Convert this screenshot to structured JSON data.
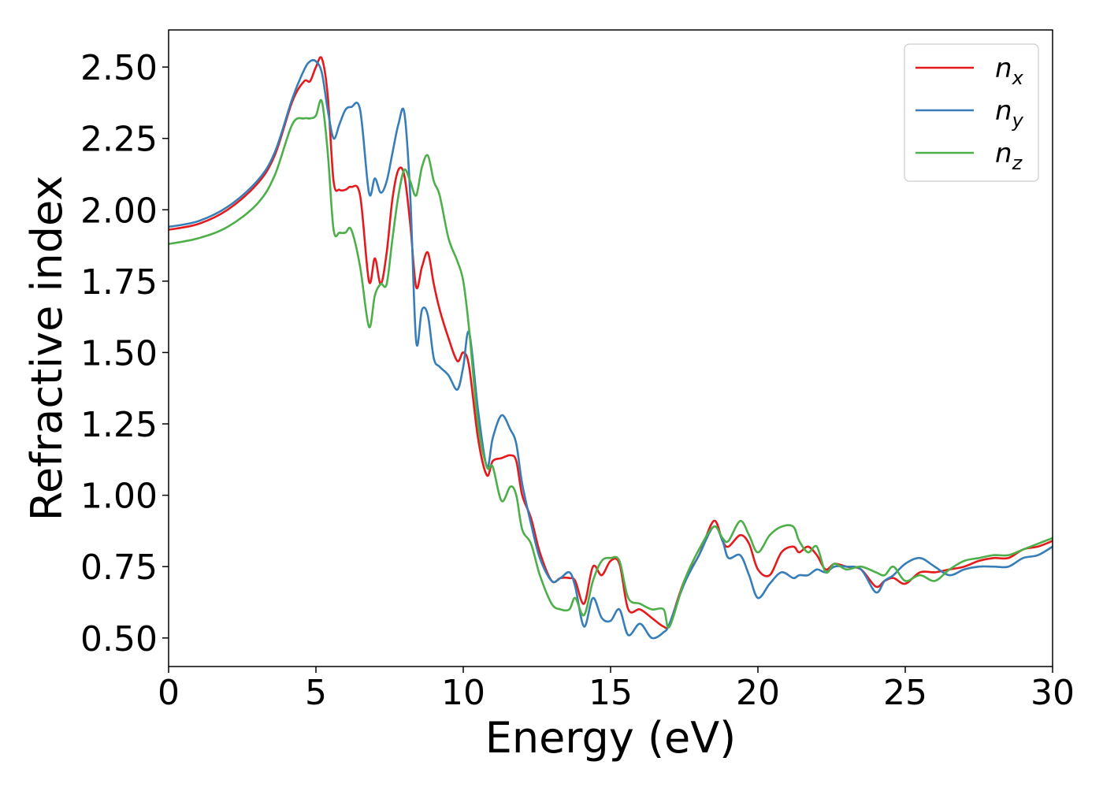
{
  "chart_data": {
    "type": "line",
    "title": "",
    "xlabel": "Energy (eV)",
    "ylabel": "Refractive index",
    "xlim": [
      0,
      30
    ],
    "ylim": [
      0.4,
      2.63
    ],
    "xticks": [
      0,
      5,
      10,
      15,
      20,
      25,
      30
    ],
    "xtick_labels": [
      "0",
      "5",
      "10",
      "15",
      "20",
      "25",
      "30"
    ],
    "yticks": [
      0.5,
      0.75,
      1.0,
      1.25,
      1.5,
      1.75,
      2.0,
      2.25,
      2.5
    ],
    "ytick_labels": [
      "0.50",
      "0.75",
      "1.00",
      "1.25",
      "1.50",
      "1.75",
      "2.00",
      "2.25",
      "2.50"
    ],
    "grid": false,
    "legend_position": "top-right",
    "series": [
      {
        "name": "n_x",
        "legend_base": "n",
        "legend_sub": "x",
        "color": "#e41a1c",
        "x": [
          0,
          1,
          2,
          3,
          3.6,
          4.2,
          4.6,
          4.8,
          5.0,
          5.2,
          5.4,
          5.6,
          5.8,
          6.0,
          6.2,
          6.5,
          6.8,
          7.0,
          7.2,
          7.4,
          7.6,
          7.8,
          8.0,
          8.2,
          8.4,
          8.6,
          8.8,
          9.0,
          9.2,
          9.5,
          9.8,
          10.0,
          10.2,
          10.5,
          10.8,
          11.0,
          11.3,
          11.6,
          11.8,
          12.0,
          12.3,
          12.6,
          13.0,
          13.3,
          13.6,
          13.8,
          14.1,
          14.4,
          14.7,
          15.0,
          15.3,
          15.6,
          16.0,
          16.4,
          16.8,
          17.0,
          17.5,
          18.0,
          18.5,
          18.8,
          19.0,
          19.4,
          19.7,
          20.0,
          20.4,
          20.8,
          21.2,
          21.4,
          21.7,
          22.0,
          22.3,
          22.6,
          23.0,
          23.5,
          24.0,
          24.3,
          24.6,
          25.0,
          25.5,
          26.0,
          26.5,
          27.0,
          27.5,
          28.0,
          28.5,
          29.0,
          29.5,
          30.0
        ],
        "y": [
          1.93,
          1.95,
          2.0,
          2.09,
          2.19,
          2.38,
          2.45,
          2.45,
          2.5,
          2.53,
          2.4,
          2.1,
          2.07,
          2.07,
          2.08,
          2.05,
          1.75,
          1.83,
          1.74,
          1.85,
          2.04,
          2.14,
          2.12,
          1.95,
          1.73,
          1.8,
          1.85,
          1.74,
          1.65,
          1.55,
          1.47,
          1.5,
          1.45,
          1.2,
          1.07,
          1.12,
          1.13,
          1.14,
          1.12,
          1.0,
          0.92,
          0.8,
          0.7,
          0.71,
          0.71,
          0.7,
          0.62,
          0.75,
          0.72,
          0.77,
          0.76,
          0.6,
          0.6,
          0.57,
          0.54,
          0.55,
          0.7,
          0.79,
          0.91,
          0.84,
          0.82,
          0.86,
          0.83,
          0.74,
          0.72,
          0.8,
          0.82,
          0.8,
          0.82,
          0.79,
          0.74,
          0.76,
          0.75,
          0.74,
          0.68,
          0.7,
          0.71,
          0.69,
          0.73,
          0.73,
          0.74,
          0.75,
          0.77,
          0.78,
          0.78,
          0.81,
          0.82,
          0.84
        ]
      },
      {
        "name": "n_y",
        "legend_base": "n",
        "legend_sub": "y",
        "color": "#377eb8",
        "x": [
          0,
          1,
          2,
          3,
          3.6,
          4.2,
          4.6,
          4.8,
          5.0,
          5.2,
          5.4,
          5.6,
          5.8,
          6.0,
          6.2,
          6.5,
          6.8,
          7.0,
          7.2,
          7.4,
          7.6,
          7.8,
          8.0,
          8.2,
          8.4,
          8.6,
          8.8,
          9.0,
          9.2,
          9.5,
          9.8,
          10.0,
          10.2,
          10.5,
          10.8,
          11.0,
          11.3,
          11.6,
          11.8,
          12.0,
          12.3,
          12.6,
          13.0,
          13.3,
          13.6,
          13.8,
          14.1,
          14.4,
          14.7,
          15.0,
          15.3,
          15.6,
          16.0,
          16.4,
          16.8,
          17.0,
          17.5,
          18.0,
          18.5,
          18.8,
          19.0,
          19.4,
          19.7,
          20.0,
          20.4,
          20.8,
          21.2,
          21.4,
          21.7,
          22.0,
          22.3,
          22.6,
          23.0,
          23.5,
          24.0,
          24.3,
          24.6,
          25.0,
          25.5,
          26.0,
          26.5,
          27.0,
          27.5,
          28.0,
          28.5,
          29.0,
          29.5,
          30.0
        ],
        "y": [
          1.94,
          1.96,
          2.01,
          2.1,
          2.2,
          2.39,
          2.49,
          2.52,
          2.52,
          2.48,
          2.35,
          2.25,
          2.3,
          2.35,
          2.36,
          2.35,
          2.06,
          2.11,
          2.06,
          2.1,
          2.2,
          2.3,
          2.34,
          2.05,
          1.54,
          1.65,
          1.63,
          1.48,
          1.45,
          1.42,
          1.37,
          1.45,
          1.57,
          1.3,
          1.1,
          1.2,
          1.28,
          1.23,
          1.18,
          1.04,
          0.9,
          0.78,
          0.7,
          0.71,
          0.73,
          0.68,
          0.54,
          0.64,
          0.57,
          0.56,
          0.6,
          0.51,
          0.55,
          0.5,
          0.52,
          0.55,
          0.69,
          0.79,
          0.89,
          0.84,
          0.78,
          0.79,
          0.72,
          0.64,
          0.69,
          0.73,
          0.71,
          0.72,
          0.72,
          0.74,
          0.73,
          0.75,
          0.75,
          0.74,
          0.66,
          0.7,
          0.72,
          0.76,
          0.78,
          0.75,
          0.72,
          0.74,
          0.75,
          0.75,
          0.75,
          0.78,
          0.79,
          0.82
        ]
      },
      {
        "name": "n_z",
        "legend_base": "n",
        "legend_sub": "z",
        "color": "#4daf4a",
        "x": [
          0,
          1,
          2,
          3,
          3.6,
          4.2,
          4.6,
          4.8,
          5.0,
          5.2,
          5.4,
          5.6,
          5.8,
          6.0,
          6.2,
          6.5,
          6.8,
          7.0,
          7.2,
          7.4,
          7.6,
          7.8,
          8.0,
          8.2,
          8.4,
          8.6,
          8.8,
          9.0,
          9.2,
          9.5,
          9.8,
          10.0,
          10.2,
          10.5,
          10.8,
          11.0,
          11.3,
          11.6,
          11.8,
          12.0,
          12.3,
          12.6,
          13.0,
          13.3,
          13.6,
          13.8,
          14.1,
          14.4,
          14.7,
          15.0,
          15.3,
          15.6,
          16.0,
          16.4,
          16.8,
          17.0,
          17.5,
          18.0,
          18.5,
          18.8,
          19.0,
          19.4,
          19.7,
          20.0,
          20.4,
          20.8,
          21.2,
          21.4,
          21.7,
          22.0,
          22.3,
          22.6,
          23.0,
          23.5,
          24.0,
          24.3,
          24.6,
          25.0,
          25.5,
          26.0,
          26.5,
          27.0,
          27.5,
          28.0,
          28.5,
          29.0,
          29.5,
          30.0
        ],
        "y": [
          1.88,
          1.9,
          1.94,
          2.02,
          2.12,
          2.3,
          2.32,
          2.32,
          2.33,
          2.38,
          2.2,
          1.93,
          1.92,
          1.92,
          1.93,
          1.8,
          1.59,
          1.7,
          1.74,
          1.74,
          1.9,
          2.05,
          2.14,
          2.1,
          2.05,
          2.15,
          2.19,
          2.1,
          2.05,
          1.9,
          1.82,
          1.75,
          1.58,
          1.25,
          1.1,
          1.1,
          0.98,
          1.03,
          1.0,
          0.88,
          0.83,
          0.72,
          0.62,
          0.6,
          0.6,
          0.64,
          0.58,
          0.7,
          0.77,
          0.78,
          0.77,
          0.64,
          0.62,
          0.6,
          0.6,
          0.54,
          0.7,
          0.81,
          0.89,
          0.85,
          0.84,
          0.91,
          0.86,
          0.8,
          0.86,
          0.89,
          0.89,
          0.84,
          0.8,
          0.82,
          0.73,
          0.76,
          0.74,
          0.75,
          0.73,
          0.72,
          0.75,
          0.7,
          0.72,
          0.7,
          0.74,
          0.77,
          0.78,
          0.79,
          0.79,
          0.81,
          0.83,
          0.85
        ]
      }
    ]
  }
}
